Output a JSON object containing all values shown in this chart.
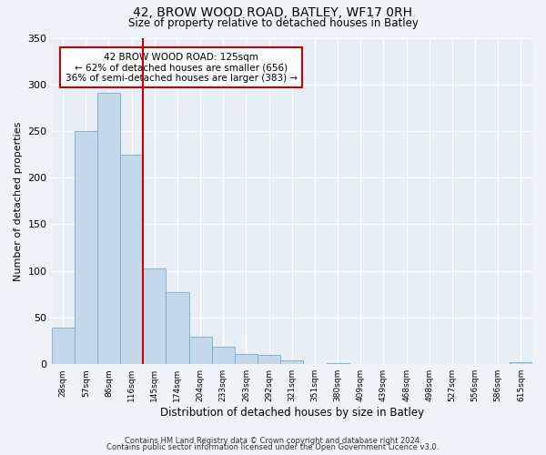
{
  "title": "42, BROW WOOD ROAD, BATLEY, WF17 0RH",
  "subtitle": "Size of property relative to detached houses in Batley",
  "xlabel": "Distribution of detached houses by size in Batley",
  "ylabel": "Number of detached properties",
  "bar_labels": [
    "28sqm",
    "57sqm",
    "86sqm",
    "116sqm",
    "145sqm",
    "174sqm",
    "204sqm",
    "233sqm",
    "263sqm",
    "292sqm",
    "321sqm",
    "351sqm",
    "380sqm",
    "409sqm",
    "439sqm",
    "468sqm",
    "498sqm",
    "527sqm",
    "556sqm",
    "586sqm",
    "615sqm"
  ],
  "bar_values": [
    39,
    250,
    291,
    225,
    103,
    77,
    29,
    19,
    11,
    10,
    4,
    0,
    1,
    0,
    0,
    0,
    0,
    0,
    0,
    0,
    2
  ],
  "bar_color": "#c5d8ea",
  "bar_edgecolor": "#7aaac8",
  "vline_color": "#cc0000",
  "annotation_title": "42 BROW WOOD ROAD: 125sqm",
  "annotation_line1": "← 62% of detached houses are smaller (656)",
  "annotation_line2": "36% of semi-detached houses are larger (383) →",
  "annotation_box_edgecolor": "#cc0000",
  "ylim": [
    0,
    350
  ],
  "yticks": [
    0,
    50,
    100,
    150,
    200,
    250,
    300,
    350
  ],
  "footer1": "Contains HM Land Registry data © Crown copyright and database right 2024.",
  "footer2": "Contains public sector information licensed under the Open Government Licence v3.0.",
  "fig_bg_color": "#f0f4f8",
  "plot_bg_color": "#e8eef5"
}
